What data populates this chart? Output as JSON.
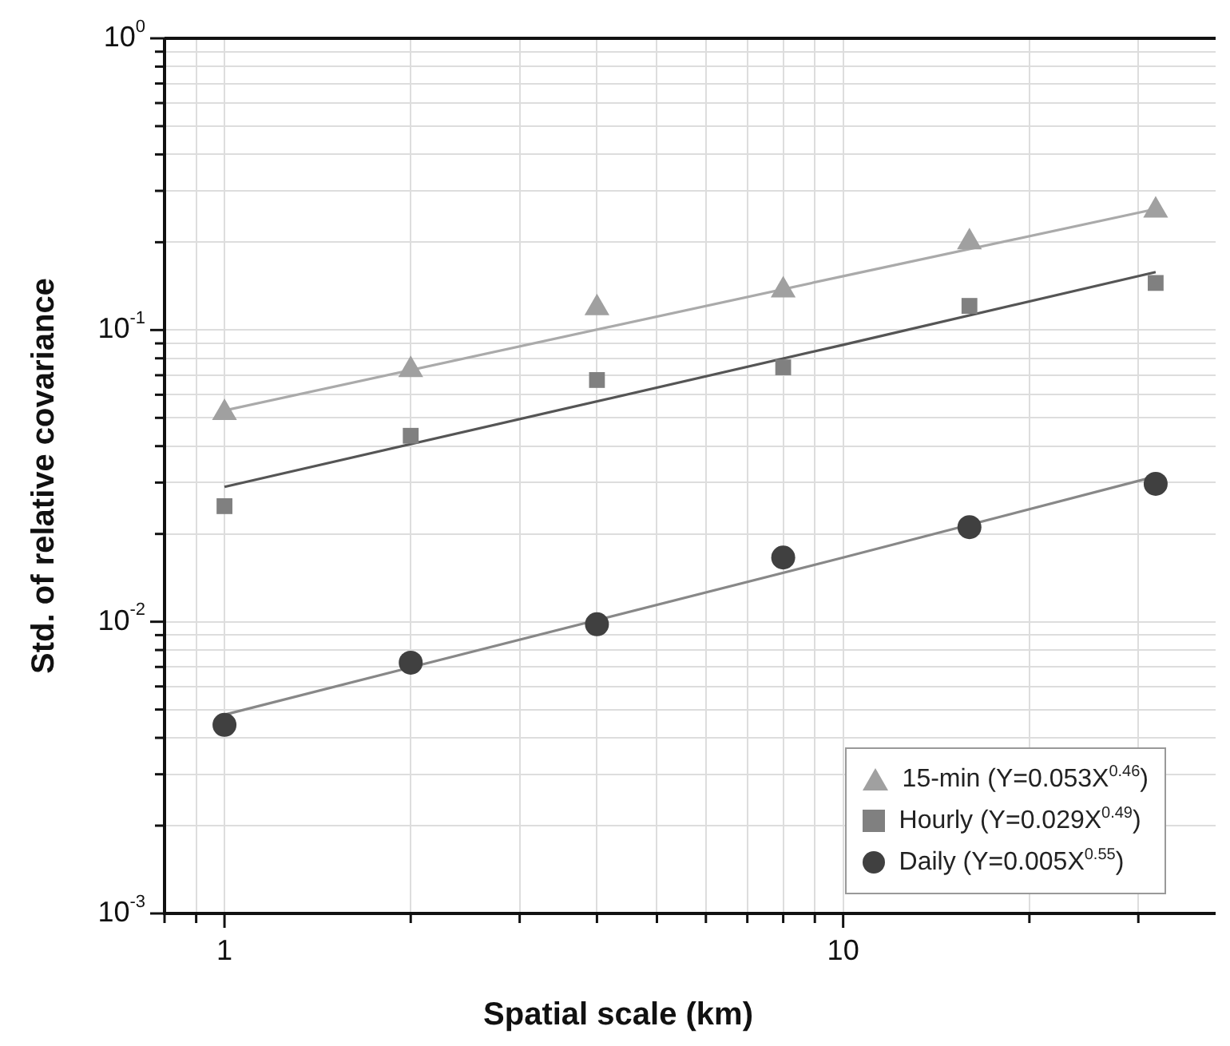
{
  "chart_data": {
    "type": "scatter",
    "xlabel": "Spatial scale (km)",
    "ylabel": "Std. of relative covariance",
    "log": "xy",
    "grid": true,
    "legend": "bottom right",
    "xlim": [
      0.8,
      40
    ],
    "ylim": [
      0.001,
      1
    ],
    "xticks": [
      {
        "value": 0.8,
        "label": null
      },
      {
        "value": 0.9,
        "label": null
      },
      1,
      {
        "value": 2,
        "label": null
      },
      {
        "value": 3,
        "label": null
      },
      {
        "value": 4,
        "label": null
      },
      {
        "value": 5,
        "label": null
      },
      {
        "value": 6,
        "label": null
      },
      {
        "value": 7,
        "label": null
      },
      {
        "value": 8,
        "label": null
      },
      {
        "value": 9,
        "label": null
      },
      10,
      {
        "value": 20,
        "label": null
      },
      {
        "value": 30,
        "label": null
      }
    ],
    "yticks": [
      {
        "value": 0.001,
        "label": "10$^{-3}$"
      },
      {
        "value": 0.002,
        "label": null
      },
      {
        "value": 0.003,
        "label": null
      },
      {
        "value": 0.004,
        "label": null
      },
      {
        "value": 0.005,
        "label": null
      },
      {
        "value": 0.006,
        "label": null
      },
      {
        "value": 0.007,
        "label": null
      },
      {
        "value": 0.008,
        "label": null
      },
      {
        "value": 0.009,
        "label": null
      },
      {
        "value": 0.01,
        "label": "10$^{-2}$"
      },
      {
        "value": 0.02,
        "label": null
      },
      {
        "value": 0.03,
        "label": null
      },
      {
        "value": 0.04,
        "label": null
      },
      {
        "value": 0.05,
        "label": null
      },
      {
        "value": 0.06,
        "label": null
      },
      {
        "value": 0.07,
        "label": null
      },
      {
        "value": 0.08,
        "label": null
      },
      {
        "value": 0.09,
        "label": null
      },
      {
        "value": 0.1,
        "label": "10$^{-1}$"
      },
      {
        "value": 0.2,
        "label": null
      },
      {
        "value": 0.3,
        "label": null
      },
      {
        "value": 0.4,
        "label": null
      },
      {
        "value": 0.5,
        "label": null
      },
      {
        "value": 0.6,
        "label": null
      },
      {
        "value": 0.7,
        "label": null
      },
      {
        "value": 0.8,
        "label": null
      },
      {
        "value": 0.9,
        "label": null
      },
      {
        "value": 1,
        "label": "10$^{0}$"
      }
    ],
    "x": [
      1,
      2,
      4,
      8,
      16,
      32
    ],
    "series": [
      {
        "type": "line",
        "color": "#aaaaaa",
        "x": [
          1,
          10,
          32
        ],
        "values": [
          0.053,
          0.153,
          0.26
        ]
      },
      {
        "type": "line",
        "color": "#555555",
        "x": [
          1,
          10,
          32
        ],
        "values": [
          0.029,
          0.089,
          0.158
        ]
      },
      {
        "type": "line",
        "color": "#888888",
        "x": [
          1,
          10,
          32
        ],
        "values": [
          0.0048,
          0.0166,
          0.0315
        ]
      },
      {
        "name": "15-min (Y=0.053X$^{0.46}$)",
        "color": "#a0a0a0",
        "marker": "triangle",
        "values": [
          0.052,
          0.073,
          0.119,
          0.137,
          0.2,
          0.257
        ]
      },
      {
        "name": "Hourly (Y=0.029X$^{0.49}$)",
        "color": "#808080",
        "marker": "square",
        "values": [
          0.0249,
          0.0434,
          0.0674,
          0.0745,
          0.121,
          0.145
        ]
      },
      {
        "name": "Daily (Y=0.005X$^{0.55}$)",
        "color": "#404040",
        "marker": "circle",
        "values": [
          0.00443,
          0.00724,
          0.0098,
          0.0166,
          0.0211,
          0.0297
        ]
      }
    ]
  }
}
